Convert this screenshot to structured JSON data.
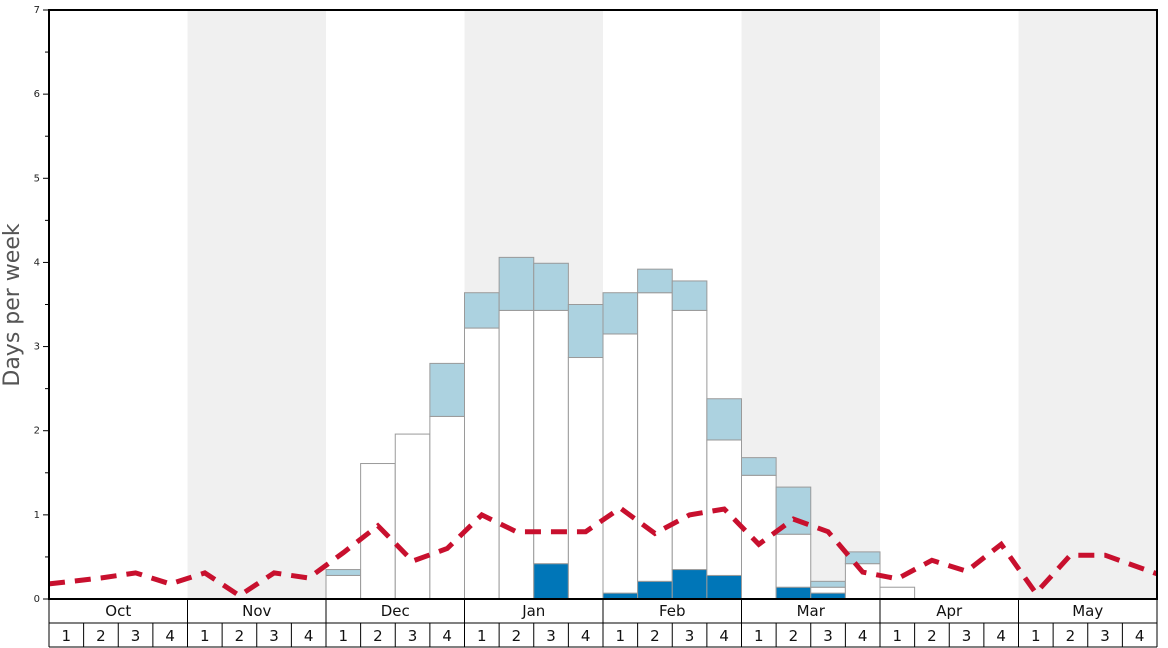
{
  "chart_data": {
    "type": "bar",
    "ylabel": "Days per week",
    "ylim": [
      0,
      7
    ],
    "yticks": [
      "0",
      "1",
      "2",
      "3",
      "4",
      "5",
      "6",
      "7"
    ],
    "months": [
      "Oct",
      "Nov",
      "Dec",
      "Jan",
      "Feb",
      "Mar",
      "Apr",
      "May"
    ],
    "week_labels": [
      "1",
      "2",
      "3",
      "4"
    ],
    "shaded_months": [
      false,
      true,
      false,
      true,
      false,
      true,
      false,
      true
    ],
    "series": [
      {
        "values": [
          0,
          0,
          0,
          0,
          0,
          0,
          0,
          0,
          0,
          0,
          0,
          0,
          0,
          0,
          0.42,
          0,
          0.07,
          0.21,
          0.35,
          0.28,
          0,
          0.14,
          0.07,
          0,
          0,
          0,
          0,
          0,
          0,
          0,
          0,
          0
        ]
      },
      {
        "values": [
          0,
          0,
          0,
          0,
          0,
          0,
          0,
          0,
          0.28,
          1.61,
          1.96,
          2.17,
          3.22,
          3.43,
          3.01,
          2.87,
          3.08,
          3.43,
          3.08,
          1.61,
          1.47,
          0.63,
          0.07,
          0.42,
          0.14,
          0,
          0,
          0,
          0,
          0,
          0,
          0
        ]
      },
      {
        "values": [
          0,
          0,
          0,
          0,
          0,
          0,
          0,
          0,
          0.07,
          0,
          0,
          0.63,
          0.42,
          0.63,
          0.56,
          0.63,
          0.49,
          0.28,
          0.35,
          0.49,
          0.21,
          0.56,
          0.07,
          0.14,
          0,
          0,
          0,
          0,
          0,
          0,
          0,
          0
        ]
      },
      {
        "values": [
          0.18,
          0.25,
          0.31,
          0.18,
          0.31,
          0.04,
          0.31,
          0.25,
          0.55,
          0.87,
          0.45,
          0.6,
          1.0,
          0.8,
          0.8,
          0.8,
          1.08,
          0.78,
          1.0,
          1.07,
          0.65,
          0.95,
          0.8,
          0.32,
          0.24,
          0.46,
          0.33,
          0.65,
          0.07,
          0.52,
          0.52,
          0.3
        ]
      }
    ],
    "colors": {
      "series1": "#0076b8",
      "series2": "#ffffff",
      "series3": "#acd2e0",
      "line": "#c8102e",
      "shade": "#f0f0f0",
      "bar_stroke": "#9a9a9a",
      "axis": "#000000"
    }
  }
}
